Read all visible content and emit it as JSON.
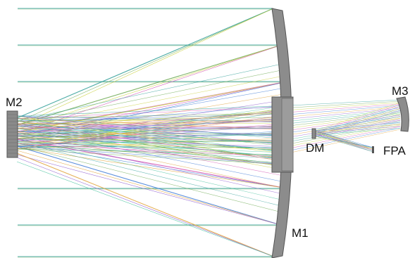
{
  "labels": {
    "m1": "M1",
    "m2": "M2",
    "m3": "M3",
    "dm": "DM",
    "fpa": "FPA"
  },
  "colors": {
    "background": "#ffffff",
    "mirror_fill": "#8c8c8c",
    "mirror_edge": "#555555",
    "ray_primary": "#2e9e97",
    "ray_palette": [
      "#2e9e97",
      "#6aa84f",
      "#c9cf3a",
      "#d14fb0",
      "#3d7ad6",
      "#e0a33a",
      "#8e5bd0",
      "#3fbf9a"
    ]
  },
  "diagram": {
    "type": "three-mirror-anastigmat ray trace",
    "components": [
      "M1",
      "M2",
      "M3",
      "DM",
      "FPA"
    ]
  }
}
